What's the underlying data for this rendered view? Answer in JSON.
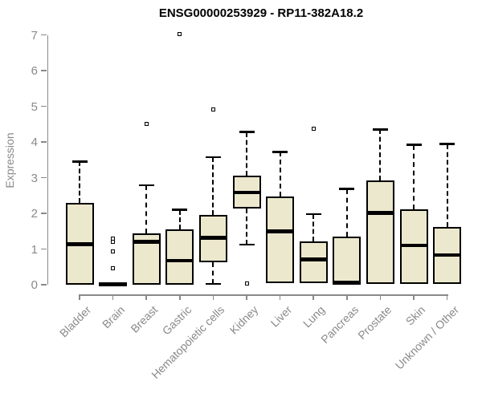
{
  "title": "ENSG00000253929 - RP11-382A18.2",
  "y_axis": {
    "label": "Expression"
  },
  "chart_data": {
    "type": "boxplot",
    "title": "ENSG00000253929 - RP11-382A18.2",
    "xlabel": "",
    "ylabel": "Expression",
    "ylim": [
      0,
      7.1
    ],
    "yticks": [
      0,
      1,
      2,
      3,
      4,
      5,
      6,
      7
    ],
    "grid": false,
    "legend": "none",
    "categories": [
      "Bladder",
      "Brain",
      "Breast",
      "Gastric",
      "Hematopoietic cells",
      "Kidney",
      "Liver",
      "Lung",
      "Pancreas",
      "Prostate",
      "Skin",
      "Unknown / Other"
    ],
    "boxes": [
      {
        "category": "Bladder",
        "whisker_low": 0,
        "q1": 0,
        "median": 1.13,
        "q3": 2.3,
        "whisker_high": 3.45,
        "outliers": []
      },
      {
        "category": "Brain",
        "whisker_low": 0,
        "q1": 0,
        "median": 0.02,
        "q3": 0.05,
        "whisker_high": 0.05,
        "outliers": [
          1.3,
          1.21,
          0.94,
          0.47
        ]
      },
      {
        "category": "Breast",
        "whisker_low": 0,
        "q1": 0,
        "median": 1.2,
        "q3": 1.44,
        "whisker_high": 2.79,
        "outliers": [
          4.5
        ]
      },
      {
        "category": "Gastric",
        "whisker_low": 0,
        "q1": 0,
        "median": 0.67,
        "q3": 1.55,
        "whisker_high": 2.1,
        "outliers": [
          7.03
        ]
      },
      {
        "category": "Hematopoietic cells",
        "whisker_low": 0.02,
        "q1": 0.64,
        "median": 1.31,
        "q3": 1.95,
        "whisker_high": 3.57,
        "outliers": [
          4.9
        ]
      },
      {
        "category": "Kidney",
        "whisker_low": 1.12,
        "q1": 2.13,
        "median": 2.58,
        "q3": 3.05,
        "whisker_high": 4.28,
        "outliers": [
          0.03
        ]
      },
      {
        "category": "Liver",
        "whisker_low": 0.04,
        "q1": 0.04,
        "median": 1.5,
        "q3": 2.47,
        "whisker_high": 3.72,
        "outliers": []
      },
      {
        "category": "Lung",
        "whisker_low": 0.05,
        "q1": 0.05,
        "median": 0.71,
        "q3": 1.22,
        "whisker_high": 1.98,
        "outliers": [
          4.37
        ]
      },
      {
        "category": "Pancreas",
        "whisker_low": 0,
        "q1": 0,
        "median": 0.06,
        "q3": 1.35,
        "whisker_high": 2.68,
        "outliers": []
      },
      {
        "category": "Prostate",
        "whisker_low": 0.03,
        "q1": 0.03,
        "median": 2.01,
        "q3": 2.93,
        "whisker_high": 4.35,
        "outliers": []
      },
      {
        "category": "Skin",
        "whisker_low": 0.02,
        "q1": 0.02,
        "median": 1.1,
        "q3": 2.11,
        "whisker_high": 3.92,
        "outliers": []
      },
      {
        "category": "Unknown / Other",
        "whisker_low": 0.02,
        "q1": 0.02,
        "median": 0.83,
        "q3": 1.61,
        "whisker_high": 3.94,
        "outliers": []
      }
    ],
    "colors": {
      "box_fill": "#ece8cd",
      "box_border": "#000000",
      "median": "#000000",
      "whisker": "#000000",
      "axis": "#898989",
      "tick_label": "#8a8a8a",
      "title": "#000000",
      "outlier_fill": "#ffffff",
      "outlier_border": "#000000"
    }
  }
}
